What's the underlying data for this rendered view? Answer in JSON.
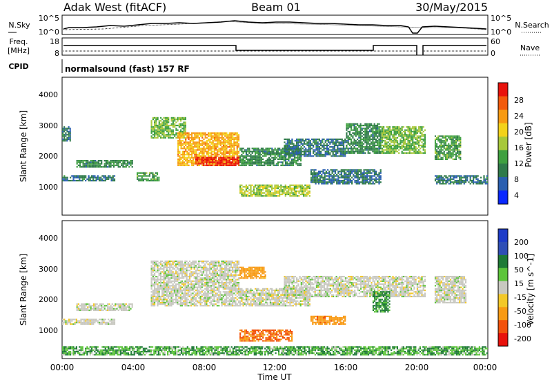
{
  "header": {
    "title": "Adak West (fitACF)",
    "beam": "Beam 01",
    "date": "30/May/2015"
  },
  "ticks_x": [
    "00:00",
    "04:00",
    "08:00",
    "12:00",
    "16:00",
    "20:00",
    "00:00"
  ],
  "x_label": "Time UT",
  "panels": {
    "nsky": {
      "left_label": "N.Sky",
      "right_label": "N.Search",
      "left_ticks": [
        "10^5",
        "10^0"
      ],
      "right_ticks": [
        "10^5",
        "10^0"
      ]
    },
    "freq": {
      "left_label_1": "Freq.",
      "left_label_2": "[MHz]",
      "right_label": "Nave",
      "left_ticks": [
        "18",
        "8"
      ],
      "right_ticks": [
        "60",
        "0"
      ]
    },
    "cpid": {
      "label": "CPID",
      "text": "normalsound (fast) 157 RF"
    },
    "power": {
      "ylabel": "Slant Range [km]",
      "yticks": [
        "4000",
        "3000",
        "2000",
        "1000"
      ],
      "colorbar_label": "Power [dB]",
      "colorbar_ticks": [
        "28",
        "24",
        "20",
        "16",
        "12",
        "8",
        "4"
      ]
    },
    "velocity": {
      "ylabel": "Slant Range [km]",
      "yticks": [
        "4000",
        "3000",
        "2000",
        "1000"
      ],
      "colorbar_label": "Velocity [m s^-1]",
      "colorbar_ticks": [
        "200",
        "100",
        "50",
        "15",
        "-15",
        "-50",
        "-100",
        "-200"
      ]
    }
  },
  "colors": {
    "power_scale": [
      "#0a28ff",
      "#2a5fb0",
      "#2f7a4a",
      "#3fa040",
      "#a7c83a",
      "#f3d21a",
      "#f79a12",
      "#f25a0c",
      "#e8120c"
    ],
    "velocity_scale": [
      "#1e3cc8",
      "#2f4fb6",
      "#1e7a36",
      "#5cc43a",
      "#c8c8c0",
      "#f3c828",
      "#f89a14",
      "#f2520c",
      "#e8120c"
    ]
  },
  "chart_data": {
    "type": "heatmap",
    "x_range_hours": [
      0,
      24
    ],
    "y_range_km": [
      0,
      4500
    ],
    "power_features": [
      {
        "t0": 0.8,
        "t1": 4.0,
        "r0": 1550,
        "r1": 1800,
        "db": 8
      },
      {
        "t0": 0.0,
        "t1": 3.0,
        "r0": 1100,
        "r1": 1300,
        "db": 6
      },
      {
        "t0": 0.0,
        "t1": 0.5,
        "r0": 2400,
        "r1": 2900,
        "db": 6
      },
      {
        "t0": 4.2,
        "t1": 5.5,
        "r0": 1100,
        "r1": 1400,
        "db": 10
      },
      {
        "t0": 5.0,
        "t1": 7.0,
        "r0": 2500,
        "r1": 3200,
        "db": 12
      },
      {
        "t0": 6.5,
        "t1": 10.0,
        "r0": 1600,
        "r1": 2700,
        "db": 20
      },
      {
        "t0": 7.5,
        "t1": 10.0,
        "r0": 1600,
        "r1": 1900,
        "db": 28
      },
      {
        "t0": 10.0,
        "t1": 13.5,
        "r0": 1600,
        "r1": 2200,
        "db": 8
      },
      {
        "t0": 10.0,
        "t1": 14.0,
        "r0": 600,
        "r1": 1000,
        "db": 14
      },
      {
        "t0": 12.5,
        "t1": 16.0,
        "r0": 1900,
        "r1": 2500,
        "db": 6
      },
      {
        "t0": 14.0,
        "t1": 18.0,
        "r0": 1000,
        "r1": 1500,
        "db": 6
      },
      {
        "t0": 16.0,
        "t1": 18.0,
        "r0": 2000,
        "r1": 3000,
        "db": 8
      },
      {
        "t0": 18.0,
        "t1": 20.5,
        "r0": 2000,
        "r1": 2900,
        "db": 12
      },
      {
        "t0": 21.0,
        "t1": 22.5,
        "r0": 1800,
        "r1": 2600,
        "db": 10
      },
      {
        "t0": 21.0,
        "t1": 24.0,
        "r0": 1000,
        "r1": 1300,
        "db": 6
      }
    ],
    "velocity_features": [
      {
        "t0": 0.8,
        "t1": 4.0,
        "r0": 1550,
        "r1": 1800,
        "v": 0
      },
      {
        "t0": 0.0,
        "t1": 3.0,
        "r0": 1100,
        "r1": 1300,
        "v": 0
      },
      {
        "t0": 5.0,
        "t1": 10.0,
        "r0": 1700,
        "r1": 3200,
        "v": 0
      },
      {
        "t0": 10.0,
        "t1": 14.0,
        "r0": 1700,
        "r1": 2300,
        "v": 0
      },
      {
        "t0": 10.0,
        "t1": 13.0,
        "r0": 550,
        "r1": 950,
        "v": -80
      },
      {
        "t0": 14.0,
        "t1": 16.0,
        "r0": 1100,
        "r1": 1400,
        "v": -60
      },
      {
        "t0": 10.0,
        "t1": 11.5,
        "r0": 2600,
        "r1": 3000,
        "v": -50
      },
      {
        "t0": 12.5,
        "t1": 20.5,
        "r0": 2000,
        "r1": 2700,
        "v": 0
      },
      {
        "t0": 17.5,
        "t1": 18.5,
        "r0": 1500,
        "r1": 2200,
        "v": 40
      },
      {
        "t0": 21.0,
        "t1": 22.8,
        "r0": 1800,
        "r1": 2700,
        "v": 0
      },
      {
        "t0": 0.0,
        "t1": 24.0,
        "r0": 100,
        "r1": 400,
        "v": 30
      }
    ],
    "frequency_mhz": {
      "segments": [
        {
          "t0": 0,
          "t1": 10,
          "f": 14.5
        },
        {
          "t0": 10,
          "t1": 18,
          "f": 12.5
        },
        {
          "t0": 18,
          "t1": 20.5,
          "f": 14.5
        },
        {
          "t0": 21,
          "t1": 24,
          "f": 14.5
        }
      ]
    }
  }
}
